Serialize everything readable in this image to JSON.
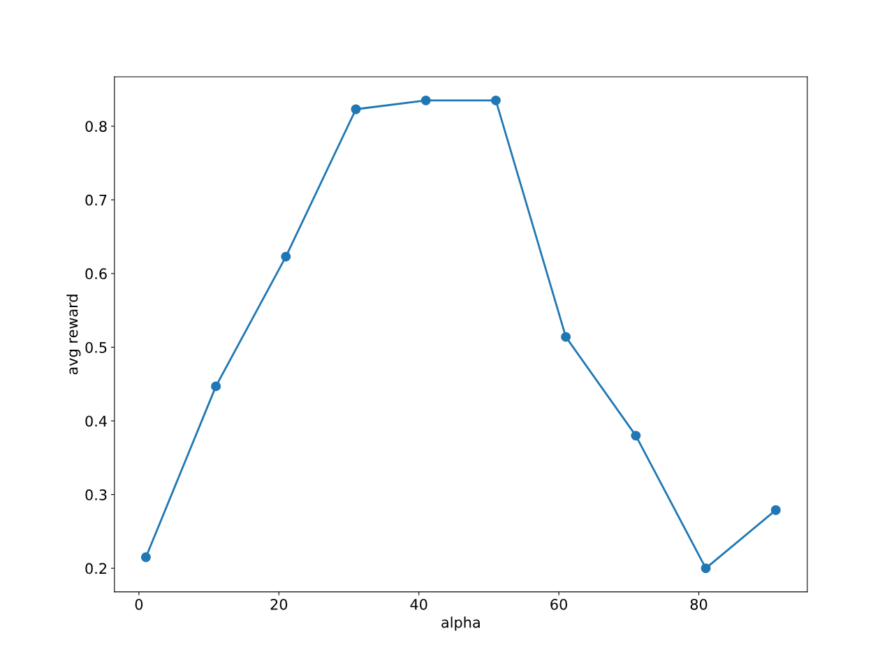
{
  "chart_data": {
    "type": "line",
    "xlabel": "alpha",
    "ylabel": "avg reward",
    "x": [
      1,
      11,
      21,
      31,
      41,
      51,
      61,
      71,
      81,
      91
    ],
    "series": [
      {
        "color": "#1f77b4",
        "values": [
          0.215,
          0.447,
          0.623,
          0.823,
          0.835,
          0.835,
          0.514,
          0.38,
          0.2,
          0.279
        ]
      }
    ],
    "xlim": [
      -3.5,
      95.5
    ],
    "ylim": [
      0.168,
      0.867
    ],
    "xticks": [
      0,
      20,
      40,
      60,
      80
    ],
    "yticks": [
      0.2,
      0.3,
      0.4,
      0.5,
      0.6,
      0.7,
      0.8
    ],
    "marker": "circle",
    "line_style": "solid",
    "grid": false,
    "legend": false
  }
}
